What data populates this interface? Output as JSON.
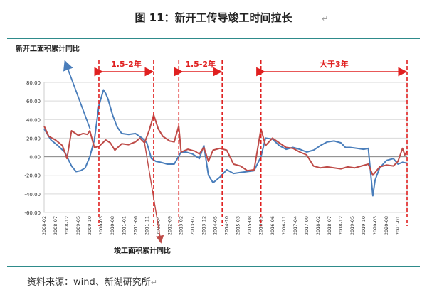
{
  "figure_title": "图 11：新开工传导竣工时间拉长",
  "return_mark": "↵",
  "source_label": "资料来源：wind、新湖研究所",
  "chart_data": {
    "type": "line",
    "title": "",
    "xlabel": "",
    "ylabel": "",
    "ylim": [
      -60,
      80
    ],
    "yticks": [
      "80.00",
      "60.00",
      "40.00",
      "20.00",
      "0.00",
      "-20.00",
      "-40.00",
      "-60.00"
    ],
    "ytick_values": [
      80,
      60,
      40,
      20,
      0,
      -20,
      -40,
      -60
    ],
    "x_range": [
      "2008-02",
      "2021-05"
    ],
    "xticks": [
      "2008-02",
      "2008-07",
      "2008-12",
      "2009-05",
      "2009-10",
      "2010-03",
      "2010-08",
      "2011-01",
      "2011-06",
      "2011-11",
      "2012-04",
      "2012-09",
      "2013-02",
      "2013-07",
      "2013-12",
      "2014-05",
      "2014-10",
      "2015-03",
      "2015-08",
      "2016-01",
      "2016-06",
      "2016-11",
      "2017-04",
      "2017-09",
      "2018-02",
      "2018-07",
      "2018-12",
      "2019-05",
      "2019-10",
      "2020-03",
      "2020-08",
      "2021-01"
    ],
    "grid": true,
    "colors": {
      "new_starts": "#4a7ebb",
      "completions": "#be4b48",
      "annotation": "#e02020"
    },
    "series": [
      {
        "name": "新开工面积累计同比",
        "key": "new_starts",
        "points": [
          [
            "2008-02",
            30
          ],
          [
            "2008-05",
            18
          ],
          [
            "2008-08",
            12
          ],
          [
            "2008-11",
            5
          ],
          [
            "2009-02",
            -10
          ],
          [
            "2009-04",
            -16
          ],
          [
            "2009-06",
            -15
          ],
          [
            "2009-08",
            -12
          ],
          [
            "2009-10",
            0
          ],
          [
            "2009-12",
            18
          ],
          [
            "2010-02",
            55
          ],
          [
            "2010-04",
            72
          ],
          [
            "2010-05",
            68
          ],
          [
            "2010-06",
            62
          ],
          [
            "2010-08",
            45
          ],
          [
            "2010-10",
            32
          ],
          [
            "2010-12",
            25
          ],
          [
            "2011-03",
            24
          ],
          [
            "2011-06",
            25
          ],
          [
            "2011-09",
            20
          ],
          [
            "2011-11",
            15
          ],
          [
            "2012-01",
            -2
          ],
          [
            "2012-03",
            -5
          ],
          [
            "2012-05",
            -6
          ],
          [
            "2012-08",
            -8
          ],
          [
            "2012-11",
            -8
          ],
          [
            "2013-02",
            5
          ],
          [
            "2013-04",
            5
          ],
          [
            "2013-07",
            3
          ],
          [
            "2013-10",
            -2
          ],
          [
            "2013-12",
            12
          ],
          [
            "2014-02",
            -20
          ],
          [
            "2014-04",
            -28
          ],
          [
            "2014-07",
            -22
          ],
          [
            "2014-10",
            -14
          ],
          [
            "2015-01",
            -18
          ],
          [
            "2015-04",
            -17
          ],
          [
            "2015-07",
            -16
          ],
          [
            "2015-10",
            -15
          ],
          [
            "2016-01",
            0
          ],
          [
            "2016-03",
            20
          ],
          [
            "2016-06",
            19
          ],
          [
            "2016-09",
            12
          ],
          [
            "2016-12",
            8
          ],
          [
            "2017-03",
            10
          ],
          [
            "2017-06",
            8
          ],
          [
            "2017-09",
            5
          ],
          [
            "2017-12",
            7
          ],
          [
            "2018-03",
            12
          ],
          [
            "2018-06",
            16
          ],
          [
            "2018-09",
            17
          ],
          [
            "2018-12",
            15
          ],
          [
            "2019-02",
            10
          ],
          [
            "2019-04",
            10
          ],
          [
            "2019-07",
            9
          ],
          [
            "2019-10",
            8
          ],
          [
            "2019-12",
            9
          ],
          [
            "2020-02",
            -42
          ],
          [
            "2020-03",
            -25
          ],
          [
            "2020-05",
            -12
          ],
          [
            "2020-08",
            -4
          ],
          [
            "2020-11",
            -2
          ],
          [
            "2021-01",
            -8
          ],
          [
            "2021-03",
            -6
          ],
          [
            "2021-05",
            -7
          ]
        ]
      },
      {
        "name": "竣工面积累计同比",
        "key": "completions",
        "points": [
          [
            "2008-02",
            33
          ],
          [
            "2008-04",
            22
          ],
          [
            "2008-07",
            18
          ],
          [
            "2008-10",
            12
          ],
          [
            "2008-12",
            -2
          ],
          [
            "2009-02",
            28
          ],
          [
            "2009-05",
            23
          ],
          [
            "2009-07",
            25
          ],
          [
            "2009-09",
            24
          ],
          [
            "2009-10",
            28
          ],
          [
            "2009-12",
            10
          ],
          [
            "2010-02",
            11
          ],
          [
            "2010-05",
            18
          ],
          [
            "2010-07",
            15
          ],
          [
            "2010-09",
            7
          ],
          [
            "2010-12",
            14
          ],
          [
            "2011-03",
            13
          ],
          [
            "2011-06",
            16
          ],
          [
            "2011-08",
            20
          ],
          [
            "2011-10",
            15
          ],
          [
            "2011-12",
            28
          ],
          [
            "2012-02",
            45
          ],
          [
            "2012-04",
            30
          ],
          [
            "2012-06",
            22
          ],
          [
            "2012-09",
            17
          ],
          [
            "2012-11",
            16
          ],
          [
            "2013-01",
            33
          ],
          [
            "2013-02",
            5
          ],
          [
            "2013-05",
            8
          ],
          [
            "2013-08",
            6
          ],
          [
            "2013-10",
            3
          ],
          [
            "2013-12",
            10
          ],
          [
            "2014-02",
            -5
          ],
          [
            "2014-04",
            7
          ],
          [
            "2014-07",
            9
          ],
          [
            "2014-10",
            7
          ],
          [
            "2015-01",
            -8
          ],
          [
            "2015-04",
            -10
          ],
          [
            "2015-07",
            -15
          ],
          [
            "2015-10",
            -14
          ],
          [
            "2016-01",
            30
          ],
          [
            "2016-03",
            12
          ],
          [
            "2016-06",
            20
          ],
          [
            "2016-09",
            15
          ],
          [
            "2016-12",
            10
          ],
          [
            "2017-03",
            9
          ],
          [
            "2017-06",
            5
          ],
          [
            "2017-09",
            2
          ],
          [
            "2017-12",
            -10
          ],
          [
            "2018-03",
            -12
          ],
          [
            "2018-06",
            -11
          ],
          [
            "2018-09",
            -12
          ],
          [
            "2018-12",
            -13
          ],
          [
            "2019-03",
            -11
          ],
          [
            "2019-06",
            -12
          ],
          [
            "2019-09",
            -10
          ],
          [
            "2019-12",
            -8
          ],
          [
            "2020-02",
            -20
          ],
          [
            "2020-05",
            -11
          ],
          [
            "2020-08",
            -9
          ],
          [
            "2020-11",
            -10
          ],
          [
            "2021-01",
            -5
          ],
          [
            "2021-03",
            9
          ],
          [
            "2021-04",
            2
          ],
          [
            "2021-05",
            6
          ]
        ]
      }
    ],
    "annotations": [
      {
        "kind": "vline",
        "date": "2010-02"
      },
      {
        "kind": "vline",
        "date": "2012-02"
      },
      {
        "kind": "vline",
        "date": "2013-01"
      },
      {
        "kind": "vline",
        "date": "2014-08"
      },
      {
        "kind": "vline",
        "date": "2016-01"
      },
      {
        "kind": "vline",
        "date": "2021-05"
      },
      {
        "kind": "span",
        "from": "2010-02",
        "to": "2012-02",
        "label": "1.5-2年"
      },
      {
        "kind": "span",
        "from": "2013-01",
        "to": "2014-08",
        "label": "1.5-2年"
      },
      {
        "kind": "span",
        "from": "2016-01",
        "to": "2021-05",
        "label": "大于3年"
      }
    ],
    "callouts": [
      {
        "label": "新开工面积累计同比",
        "series": "new_starts",
        "anchor": [
          "2009-12",
          30
        ]
      },
      {
        "label": "竣工面积累计同比",
        "series": "completions",
        "anchor": [
          "2011-10",
          15
        ]
      }
    ]
  }
}
